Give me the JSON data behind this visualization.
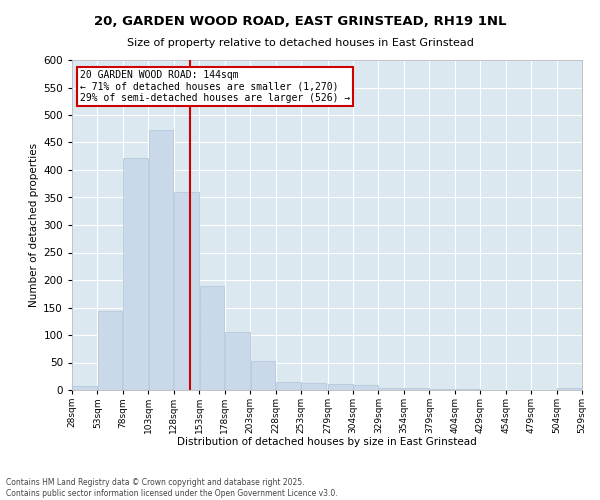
{
  "title_line1": "20, GARDEN WOOD ROAD, EAST GRINSTEAD, RH19 1NL",
  "title_line2": "Size of property relative to detached houses in East Grinstead",
  "xlabel": "Distribution of detached houses by size in East Grinstead",
  "ylabel": "Number of detached properties",
  "bar_color": "#c9d9ea",
  "bar_edge_color": "#b0c4d8",
  "background_color": "#dce8f0",
  "grid_color": "#ffffff",
  "fig_background": "#ffffff",
  "vline_color": "#cc0000",
  "vline_x": 144,
  "annotation_title": "20 GARDEN WOOD ROAD: 144sqm",
  "annotation_line1": "← 71% of detached houses are smaller (1,270)",
  "annotation_line2": "29% of semi-detached houses are larger (526) →",
  "bins": [
    28,
    53,
    78,
    103,
    128,
    153,
    178,
    203,
    228,
    253,
    279,
    304,
    329,
    354,
    379,
    404,
    429,
    454,
    479,
    504,
    529
  ],
  "counts": [
    8,
    143,
    422,
    472,
    360,
    190,
    105,
    52,
    14,
    12,
    11,
    9,
    4,
    3,
    2,
    1,
    0,
    0,
    0,
    3
  ],
  "ylim": [
    0,
    600
  ],
  "yticks": [
    0,
    50,
    100,
    150,
    200,
    250,
    300,
    350,
    400,
    450,
    500,
    550,
    600
  ],
  "footnote_line1": "Contains HM Land Registry data © Crown copyright and database right 2025.",
  "footnote_line2": "Contains public sector information licensed under the Open Government Licence v3.0."
}
